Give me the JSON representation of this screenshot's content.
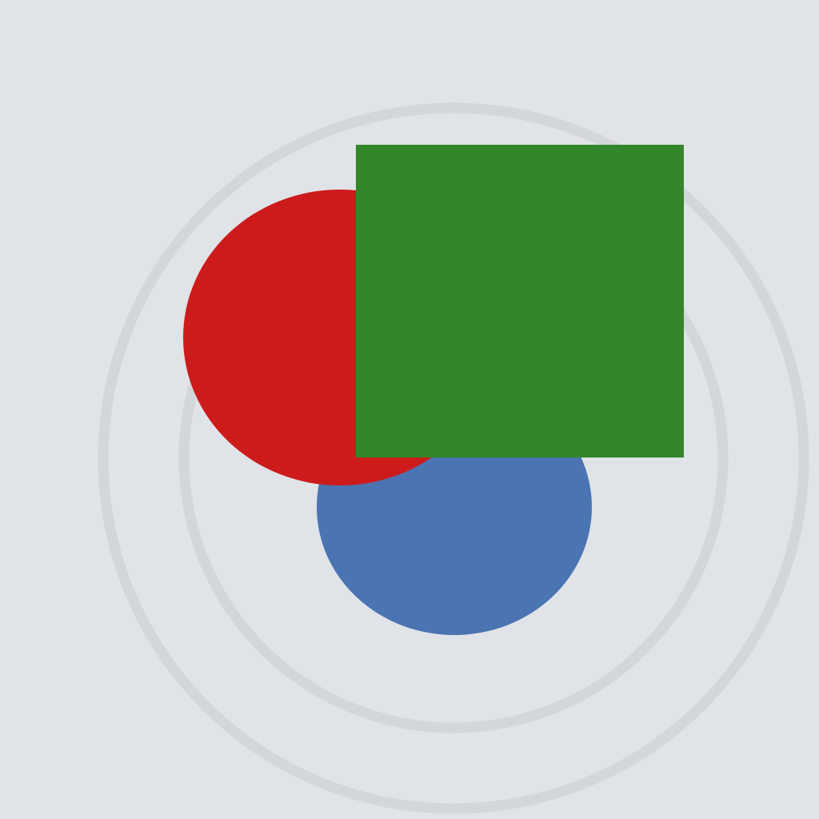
{
  "scene": {
    "background_color": "#e0e3e8",
    "ring_color": "#d3d6db",
    "shapes": [
      {
        "kind": "circle",
        "name": "blue-circle",
        "color": "#4a74b2"
      },
      {
        "kind": "circle",
        "name": "red-circle",
        "color": "#cd1b1c"
      },
      {
        "kind": "square",
        "name": "green-square",
        "color": "#34862a"
      }
    ]
  }
}
